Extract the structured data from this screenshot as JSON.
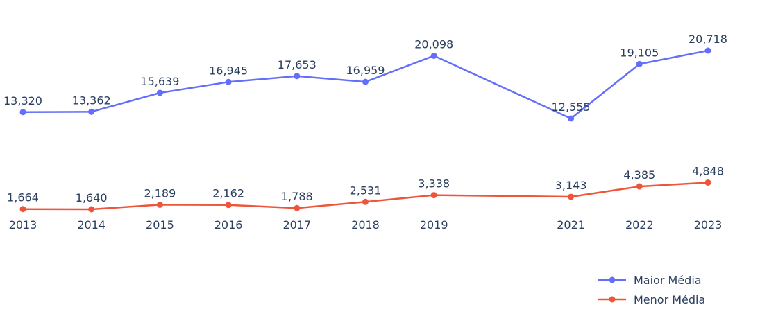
{
  "chart_data": {
    "type": "line",
    "title": "",
    "xlabel": "",
    "ylabel": "",
    "x": [
      2013,
      2014,
      2015,
      2016,
      2017,
      2018,
      2019,
      2021,
      2022,
      2023
    ],
    "x_tick_labels": [
      "2013",
      "2014",
      "2015",
      "2016",
      "2017",
      "2018",
      "2019",
      "2021",
      "2022",
      "2023"
    ],
    "xlim": [
      2013,
      2023
    ],
    "ylim": [
      0,
      22000
    ],
    "grid": false,
    "y_axis_visible": false,
    "legend_position": "bottom-right",
    "series": [
      {
        "name": "Maior Média",
        "color": "#636efa",
        "values": [
          13320,
          13362,
          15639,
          16945,
          17653,
          16959,
          20098,
          12555,
          19105,
          20718
        ],
        "labels": [
          "13,320",
          "13,362",
          "15,639",
          "16,945",
          "17,653",
          "16,959",
          "20,098",
          "12,555",
          "19,105",
          "20,718"
        ]
      },
      {
        "name": "Menor Média",
        "color": "#ef553b",
        "values": [
          1664,
          1640,
          2189,
          2162,
          1788,
          2531,
          3338,
          3143,
          4385,
          4848
        ],
        "labels": [
          "1,664",
          "1,640",
          "2,189",
          "2,162",
          "1,788",
          "2,531",
          "3,338",
          "3,143",
          "4,385",
          "4,848"
        ]
      }
    ]
  }
}
